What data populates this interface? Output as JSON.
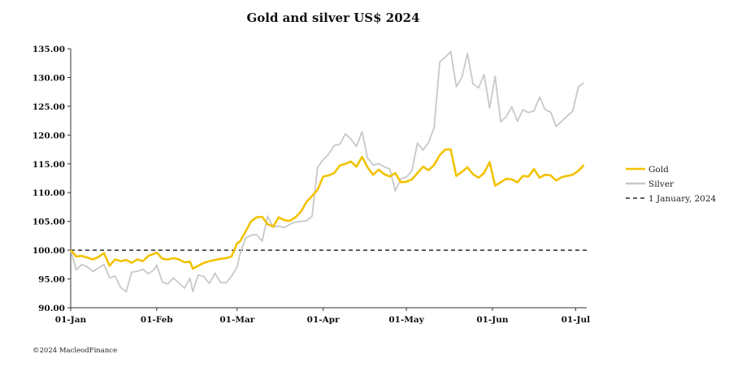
{
  "chart_data": {
    "type": "line",
    "title": "Gold and silver  US$ 2024",
    "xlabel": "",
    "ylabel": "",
    "ylim": [
      90,
      135
    ],
    "y_ticks": [
      "90.00",
      "95.00",
      "100.00",
      "105.00",
      "110.00",
      "115.00",
      "120.00",
      "125.00",
      "130.00",
      "135.00"
    ],
    "x_ticks": [
      {
        "label": "01-Jan",
        "day": 0
      },
      {
        "label": "01-Feb",
        "day": 31
      },
      {
        "label": "01-Mar",
        "day": 60
      },
      {
        "label": "01-Apr",
        "day": 91
      },
      {
        "label": "01-May",
        "day": 121
      },
      {
        "label": "01-Jun",
        "day": 152
      },
      {
        "label": "01-Jul",
        "day": 182
      }
    ],
    "x_range": [
      0,
      186
    ],
    "grid": false,
    "legend_position": "right",
    "series": [
      {
        "name": "Gold",
        "color": "#F2C200",
        "x": [
          0,
          2,
          4,
          6,
          8,
          10,
          12,
          14,
          16,
          18,
          20,
          22,
          24,
          26,
          28,
          30,
          31,
          33,
          35,
          37,
          39,
          41,
          43,
          44,
          46,
          48,
          50,
          52,
          54,
          56,
          58,
          60,
          61,
          63,
          65,
          67,
          69,
          71,
          73,
          75,
          77,
          79,
          81,
          83,
          85,
          87,
          89,
          91,
          93,
          95,
          97,
          99,
          101,
          103,
          105,
          107,
          109,
          111,
          113,
          115,
          117,
          119,
          121,
          123,
          125,
          127,
          129,
          131,
          133,
          135,
          137,
          139,
          141,
          143,
          145,
          147,
          149,
          151,
          153,
          155,
          157,
          159,
          161,
          163,
          165,
          167,
          169,
          171,
          173,
          175,
          177,
          179,
          181,
          183,
          185
        ],
        "y": [
          100,
          98.9,
          99,
          98.7,
          98.4,
          98.8,
          99.5,
          97.3,
          98.4,
          98.1,
          98.3,
          97.8,
          98.4,
          98.1,
          99.0,
          99.4,
          99.6,
          98.5,
          98.4,
          98.6,
          98.4,
          97.9,
          98.0,
          96.8,
          97.3,
          97.8,
          98.1,
          98.3,
          98.5,
          98.6,
          98.9,
          101.2,
          101.5,
          103.2,
          105.0,
          105.7,
          105.8,
          104.5,
          104.1,
          105.7,
          105.2,
          105.1,
          105.7,
          106.7,
          108.4,
          109.4,
          110.5,
          112.8,
          113.0,
          113.4,
          114.7,
          115.0,
          115.4,
          114.5,
          116.2,
          114.4,
          113.1,
          114.0,
          113.2,
          112.8,
          113.4,
          111.8,
          111.9,
          112.3,
          113.4,
          114.5,
          113.9,
          114.8,
          116.5,
          117.5,
          117.5,
          112.9,
          113.6,
          114.4,
          113.2,
          112.6,
          113.4,
          115.3,
          111.2,
          111.8,
          112.4,
          112.3,
          111.8,
          112.9,
          112.8,
          114.1,
          112.6,
          113.1,
          113.0,
          112.1,
          112.7,
          112.9,
          113.1,
          113.8,
          114.8
        ]
      },
      {
        "name": "Silver",
        "color": "#C8C8C8",
        "x": [
          0,
          2,
          4,
          6,
          8,
          10,
          12,
          14,
          16,
          18,
          20,
          22,
          24,
          26,
          28,
          30,
          31,
          33,
          35,
          37,
          39,
          41,
          43,
          44,
          46,
          48,
          50,
          52,
          54,
          56,
          58,
          60,
          61,
          63,
          65,
          67,
          69,
          71,
          73,
          75,
          77,
          79,
          81,
          83,
          85,
          87,
          89,
          91,
          93,
          95,
          97,
          99,
          101,
          103,
          105,
          107,
          109,
          111,
          113,
          115,
          117,
          119,
          121,
          123,
          125,
          127,
          129,
          131,
          133,
          135,
          137,
          139,
          141,
          143,
          145,
          147,
          149,
          151,
          153,
          155,
          157,
          159,
          161,
          163,
          165,
          167,
          169,
          171,
          173,
          175,
          177,
          179,
          181,
          183,
          185
        ],
        "y": [
          100,
          96.6,
          97.5,
          97.1,
          96.3,
          96.9,
          97.5,
          95.2,
          95.5,
          93.5,
          92.8,
          96.2,
          96.3,
          96.7,
          95.9,
          96.6,
          97.4,
          94.5,
          94.1,
          95.2,
          94.3,
          93.4,
          95.1,
          92.8,
          95.7,
          95.4,
          94.2,
          96.0,
          94.4,
          94.3,
          95.5,
          97.1,
          99.3,
          102.1,
          102.6,
          102.7,
          101.6,
          105.9,
          104.0,
          104.2,
          103.9,
          104.5,
          104.9,
          105.0,
          105.1,
          105.9,
          114.4,
          115.7,
          116.7,
          118.2,
          118.4,
          120.2,
          119.3,
          118.0,
          120.6,
          116.0,
          114.8,
          115.0,
          114.5,
          114.1,
          110.3,
          112.4,
          112.7,
          113.8,
          118.6,
          117.4,
          118.7,
          121.3,
          132.7,
          133.5,
          134.5,
          128.4,
          130.0,
          134.2,
          128.9,
          128.2,
          130.5,
          124.7,
          130.2,
          122.3,
          123.2,
          124.9,
          122.4,
          124.4,
          123.9,
          124.2,
          126.6,
          124.4,
          124.0,
          121.5,
          122.4,
          123.3,
          124.2,
          128.4,
          129.1
        ]
      },
      {
        "name": "1 January, 2024",
        "color": "#000000",
        "dashed": true,
        "x": [
          0,
          186
        ],
        "y": [
          100,
          100
        ]
      }
    ]
  },
  "credit": "©2024 MacleodFinance"
}
